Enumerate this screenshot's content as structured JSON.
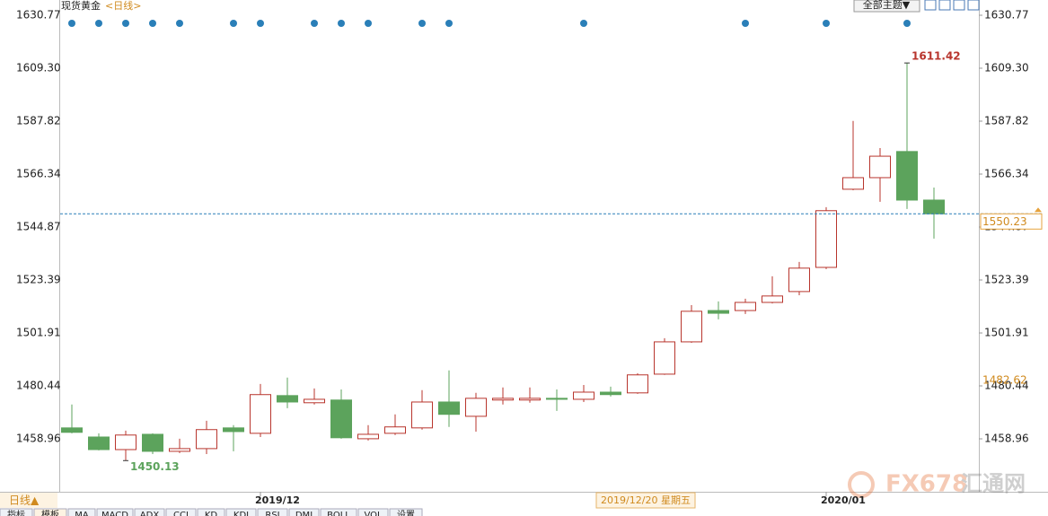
{
  "header": {
    "symbol": "现货黄金",
    "period": "<日线>",
    "theme_button": "全部主题▼"
  },
  "chart_data": {
    "type": "candlestick",
    "categories": [
      null,
      null,
      null,
      null,
      null,
      null,
      null,
      "2019/12",
      null,
      null,
      null,
      null,
      null,
      null,
      null,
      null,
      null,
      null,
      null,
      null,
      null,
      null,
      null,
      null,
      null,
      null,
      null,
      null,
      "2020/01",
      null,
      null,
      null,
      null
    ],
    "open": [
      1463.4,
      1459.7,
      1454.6,
      1460.8,
      1453.9,
      1455.0,
      1463.4,
      1461.2,
      1476.5,
      1473.6,
      1474.7,
      1459.0,
      1461.2,
      1463.4,
      1473.9,
      1468.1,
      1474.7,
      1474.7,
      1475.4,
      1475.0,
      1477.9,
      1477.6,
      1485.2,
      1498.3,
      1511.0,
      1511.0,
      1514.3,
      1518.7,
      1528.5,
      1560.2,
      1564.9,
      1575.5,
      1555.8
    ],
    "high": [
      1472.9,
      1461.2,
      1462.3,
      1461.2,
      1459.0,
      1466.3,
      1464.5,
      1481.2,
      1483.8,
      1479.4,
      1479.0,
      1464.5,
      1468.9,
      1478.7,
      1486.7,
      1477.6,
      1479.8,
      1479.8,
      1479.0,
      1480.8,
      1480.1,
      1485.6,
      1499.8,
      1513.2,
      1514.7,
      1515.8,
      1524.9,
      1530.7,
      1552.9,
      1587.9,
      1576.9,
      1611.42,
      1560.9
    ],
    "low": [
      1461.2,
      1454.3,
      1450.13,
      1452.8,
      1453.2,
      1452.8,
      1453.9,
      1459.7,
      1471.4,
      1472.9,
      1459.0,
      1458.3,
      1460.5,
      1462.7,
      1463.8,
      1461.9,
      1472.9,
      1473.6,
      1470.3,
      1473.9,
      1476.1,
      1477.2,
      1484.9,
      1497.9,
      1507.4,
      1509.6,
      1513.9,
      1517.2,
      1527.8,
      1559.8,
      1555.1,
      1552.2,
      1540.2
    ],
    "close": [
      1461.6,
      1454.6,
      1460.5,
      1453.9,
      1455.0,
      1462.7,
      1461.9,
      1476.9,
      1473.9,
      1475.0,
      1459.4,
      1460.8,
      1463.8,
      1473.9,
      1468.9,
      1475.4,
      1475.4,
      1475.4,
      1475.0,
      1477.9,
      1476.9,
      1484.9,
      1498.3,
      1510.7,
      1509.9,
      1514.3,
      1516.9,
      1528.2,
      1551.5,
      1564.9,
      1573.6,
      1555.8,
      1550.23
    ],
    "up_color": "#b8352d",
    "down_color": "#5ca35c",
    "ylim": [
      1437.49,
      1630.77
    ],
    "yticks": [
      1458.96,
      1480.44,
      1501.91,
      1523.39,
      1544.87,
      1566.34,
      1587.82,
      {
        "value": 1609.3,
        "label": "1609.30"
      },
      1630.77
    ],
    "reference_price": 1482.62,
    "period_button": "日线▲",
    "date_label": "2019/12/20 星期五"
  },
  "tabs": [
    "指标",
    "模板",
    "MA",
    "MACD",
    "ADX",
    "CCI",
    "KD",
    "KDJ",
    "RSI",
    "DMI",
    "BOLL",
    "VOL",
    "设置"
  ],
  "watermark": {
    "brand": "FX678",
    "name": "汇通网"
  }
}
